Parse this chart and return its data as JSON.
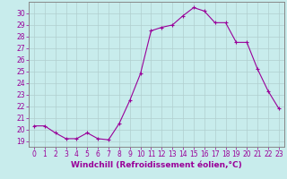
{
  "x": [
    0,
    1,
    2,
    3,
    4,
    5,
    6,
    7,
    8,
    9,
    10,
    11,
    12,
    13,
    14,
    15,
    16,
    17,
    18,
    19,
    20,
    21,
    22,
    23
  ],
  "y": [
    20.3,
    20.3,
    19.7,
    19.2,
    19.2,
    19.7,
    19.2,
    19.1,
    20.5,
    22.5,
    24.8,
    28.5,
    28.8,
    29.0,
    29.8,
    30.5,
    30.2,
    29.2,
    29.2,
    27.5,
    27.5,
    25.2,
    23.3,
    21.8
  ],
  "bg_color": "#c8ecec",
  "line_color": "#990099",
  "marker_color": "#990099",
  "grid_color": "#b0cece",
  "xlabel": "Windchill (Refroidissement éolien,°C)",
  "ylim": [
    18.5,
    31.0
  ],
  "xlim": [
    -0.5,
    23.5
  ],
  "yticks": [
    19,
    20,
    21,
    22,
    23,
    24,
    25,
    26,
    27,
    28,
    29,
    30
  ],
  "xticks": [
    0,
    1,
    2,
    3,
    4,
    5,
    6,
    7,
    8,
    9,
    10,
    11,
    12,
    13,
    14,
    15,
    16,
    17,
    18,
    19,
    20,
    21,
    22,
    23
  ],
  "tick_label_fontsize": 5.5,
  "xlabel_fontsize": 6.5,
  "axis_color": "#888888"
}
